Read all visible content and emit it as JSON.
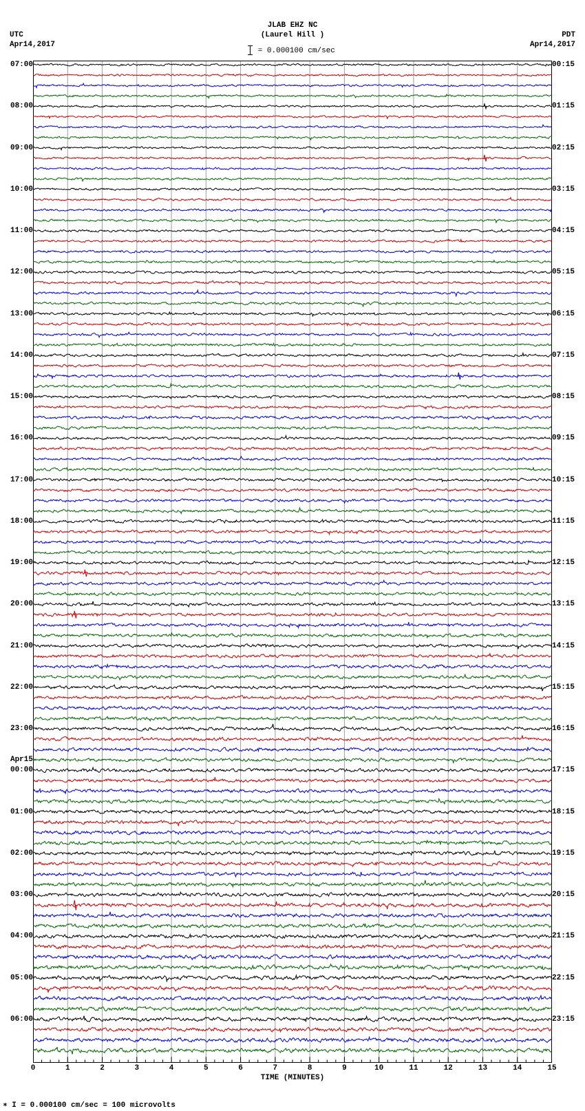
{
  "header": {
    "title_line1": "JLAB EHZ NC",
    "title_line2": "(Laurel Hill )",
    "scale_label": " = 0.000100 cm/sec"
  },
  "top_left": {
    "tz": "UTC",
    "date": "Apr14,2017"
  },
  "top_right": {
    "tz": "PDT",
    "date": "Apr14,2017"
  },
  "xaxis": {
    "label": "TIME (MINUTES)",
    "min": 0,
    "max": 15,
    "major_ticks": [
      0,
      1,
      2,
      3,
      4,
      5,
      6,
      7,
      8,
      9,
      10,
      11,
      12,
      13,
      14,
      15
    ],
    "minor_per_major": 3
  },
  "footer": "∗ I = 0.000100 cm/sec =    100 microvolts",
  "colors": {
    "background": "#ffffff",
    "grid": "#9f9f9f",
    "axis": "#000000",
    "trace_cycle": [
      "#000000",
      "#cc0000",
      "#0000dd",
      "#006600"
    ]
  },
  "helicorder": {
    "rows": 96,
    "row_colors_cycle": 4,
    "amplitude_base": 1.1,
    "amplitude_growth": 0.012,
    "noise_seed": 20170414,
    "left_labels": [
      {
        "row": 0,
        "text": "07:00"
      },
      {
        "row": 4,
        "text": "08:00"
      },
      {
        "row": 8,
        "text": "09:00"
      },
      {
        "row": 12,
        "text": "10:00"
      },
      {
        "row": 16,
        "text": "11:00"
      },
      {
        "row": 20,
        "text": "12:00"
      },
      {
        "row": 24,
        "text": "13:00"
      },
      {
        "row": 28,
        "text": "14:00"
      },
      {
        "row": 32,
        "text": "15:00"
      },
      {
        "row": 36,
        "text": "16:00"
      },
      {
        "row": 40,
        "text": "17:00"
      },
      {
        "row": 44,
        "text": "18:00"
      },
      {
        "row": 48,
        "text": "19:00"
      },
      {
        "row": 52,
        "text": "20:00"
      },
      {
        "row": 56,
        "text": "21:00"
      },
      {
        "row": 60,
        "text": "22:00"
      },
      {
        "row": 64,
        "text": "23:00"
      },
      {
        "row": 67,
        "text": "Apr15"
      },
      {
        "row": 68,
        "text": "00:00"
      },
      {
        "row": 72,
        "text": "01:00"
      },
      {
        "row": 76,
        "text": "02:00"
      },
      {
        "row": 80,
        "text": "03:00"
      },
      {
        "row": 84,
        "text": "04:00"
      },
      {
        "row": 88,
        "text": "05:00"
      },
      {
        "row": 92,
        "text": "06:00"
      }
    ],
    "right_labels": [
      {
        "row": 0,
        "text": "00:15"
      },
      {
        "row": 4,
        "text": "01:15"
      },
      {
        "row": 8,
        "text": "02:15"
      },
      {
        "row": 12,
        "text": "03:15"
      },
      {
        "row": 16,
        "text": "04:15"
      },
      {
        "row": 20,
        "text": "05:15"
      },
      {
        "row": 24,
        "text": "06:15"
      },
      {
        "row": 28,
        "text": "07:15"
      },
      {
        "row": 32,
        "text": "08:15"
      },
      {
        "row": 36,
        "text": "09:15"
      },
      {
        "row": 40,
        "text": "10:15"
      },
      {
        "row": 44,
        "text": "11:15"
      },
      {
        "row": 48,
        "text": "12:15"
      },
      {
        "row": 52,
        "text": "13:15"
      },
      {
        "row": 56,
        "text": "14:15"
      },
      {
        "row": 60,
        "text": "15:15"
      },
      {
        "row": 64,
        "text": "16:15"
      },
      {
        "row": 68,
        "text": "17:15"
      },
      {
        "row": 72,
        "text": "18:15"
      },
      {
        "row": 76,
        "text": "19:15"
      },
      {
        "row": 80,
        "text": "20:15"
      },
      {
        "row": 84,
        "text": "21:15"
      },
      {
        "row": 88,
        "text": "22:15"
      },
      {
        "row": 92,
        "text": "23:15"
      }
    ],
    "spikes": [
      {
        "row": 4,
        "x": 0.87,
        "h": 3.0
      },
      {
        "row": 9,
        "x": 0.87,
        "h": 4.0
      },
      {
        "row": 30,
        "x": 0.82,
        "h": 3.5
      },
      {
        "row": 49,
        "x": 0.1,
        "h": 3.0
      },
      {
        "row": 53,
        "x": 0.08,
        "h": 3.0
      },
      {
        "row": 81,
        "x": 0.08,
        "h": 3.5
      }
    ]
  }
}
